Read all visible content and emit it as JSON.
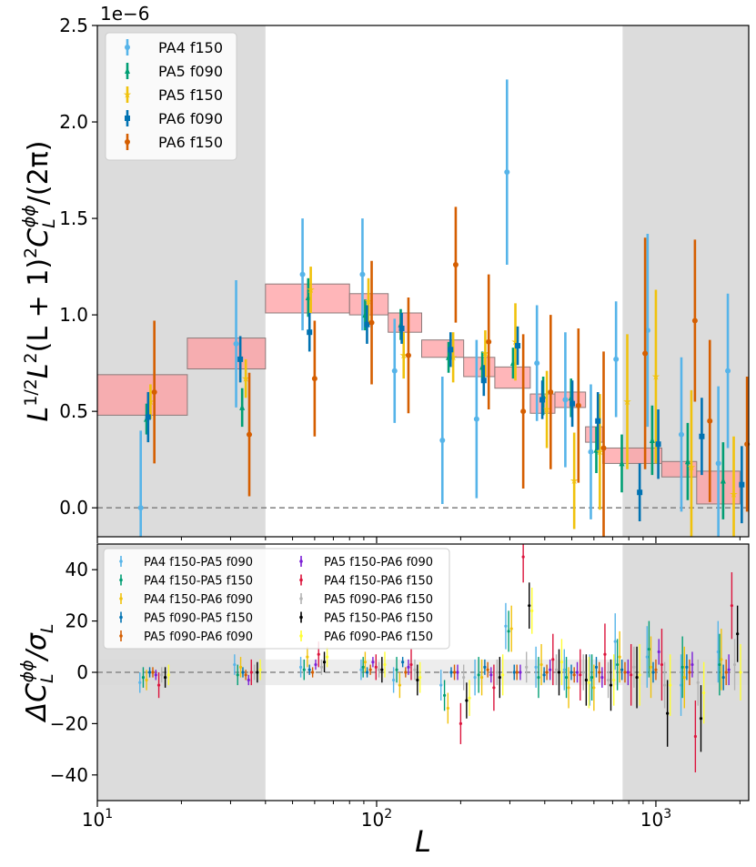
{
  "chart_data": [
    {
      "type": "scatter",
      "panel": "top",
      "scale_label": "1e−6",
      "ylabel_parts": [
        "L",
        "1/2",
        "L",
        "2",
        "(L + 1)",
        "2",
        "C",
        "L",
        "ϕϕ",
        "/(2π)"
      ],
      "xscale": "log",
      "xlim": [
        10,
        2150
      ],
      "ylim": [
        -0.15,
        2.5
      ],
      "y_ticks": [
        0.0,
        0.5,
        1.0,
        1.5,
        2.0,
        2.5
      ],
      "y_tick_labels": [
        "0.0",
        "0.5",
        "1.0",
        "1.5",
        "2.0",
        "2.5"
      ],
      "excluded_ranges": [
        [
          10,
          40
        ],
        [
          760,
          2150
        ]
      ],
      "reference_line": 0.0,
      "legend_position": "top-left",
      "bands": [
        {
          "L": [
            10,
            21
          ],
          "y": [
            0.48,
            0.69
          ]
        },
        {
          "L": [
            21,
            40
          ],
          "y": [
            0.72,
            0.88
          ]
        },
        {
          "L": [
            40,
            80
          ],
          "y": [
            1.01,
            1.16
          ]
        },
        {
          "L": [
            80,
            110
          ],
          "y": [
            1.0,
            1.11
          ]
        },
        {
          "L": [
            110,
            145
          ],
          "y": [
            0.91,
            1.01
          ]
        },
        {
          "L": [
            145,
            205
          ],
          "y": [
            0.78,
            0.87
          ]
        },
        {
          "L": [
            205,
            265
          ],
          "y": [
            0.68,
            0.78
          ]
        },
        {
          "L": [
            265,
            355
          ],
          "y": [
            0.62,
            0.73
          ]
        },
        {
          "L": [
            355,
            435
          ],
          "y": [
            0.49,
            0.59
          ]
        },
        {
          "L": [
            435,
            560
          ],
          "y": [
            0.52,
            0.6
          ]
        },
        {
          "L": [
            560,
            645
          ],
          "y": [
            0.34,
            0.42
          ]
        },
        {
          "L": [
            645,
            1050
          ],
          "y": [
            0.23,
            0.31
          ]
        },
        {
          "L": [
            1050,
            1400
          ],
          "y": [
            0.16,
            0.24
          ]
        },
        {
          "L": [
            1400,
            2000
          ],
          "y": [
            0.02,
            0.19
          ]
        }
      ],
      "series": [
        {
          "name": "PA4 f150",
          "color": "#56b4e9",
          "marker": "circle",
          "x": [
            14.3,
            31.4,
            54.3,
            89.0,
            116,
            172,
            228,
            293,
            375,
            474,
            585,
            720,
            934,
            1234,
            1674,
            1810
          ],
          "y": [
            0.0,
            0.85,
            1.21,
            1.21,
            0.71,
            0.35,
            0.46,
            1.74,
            0.75,
            0.56,
            0.29,
            0.77,
            0.92,
            0.38,
            0.23,
            0.71
          ],
          "err": [
            0.4,
            0.33,
            0.29,
            0.29,
            0.27,
            0.33,
            0.41,
            0.48,
            0.3,
            0.35,
            0.35,
            0.3,
            0.5,
            0.4,
            0.4,
            0.4
          ]
        },
        {
          "name": "PA5 f090",
          "color": "#009e73",
          "marker": "triangle",
          "x": [
            15.0,
            33.0,
            56.9,
            91.0,
            122,
            181,
            239,
            308,
            395,
            497,
            612,
            755,
            970,
            1300,
            1741
          ],
          "y": [
            0.46,
            0.52,
            1.09,
            1.0,
            0.95,
            0.78,
            0.73,
            0.75,
            0.58,
            0.57,
            0.3,
            0.23,
            0.35,
            0.24,
            0.14
          ],
          "err": [
            0.08,
            0.1,
            0.1,
            0.08,
            0.08,
            0.08,
            0.08,
            0.08,
            0.1,
            0.1,
            0.12,
            0.15,
            0.18,
            0.2,
            0.2
          ]
        },
        {
          "name": "PA5 f150",
          "color": "#f0c20c",
          "marker": "star",
          "x": [
            15.5,
            34.0,
            58.1,
            93.5,
            125,
            188,
            245,
            314,
            407,
            510,
            630,
            790,
            1000,
            1340,
            1900
          ],
          "y": [
            0.55,
            0.67,
            1.13,
            1.07,
            0.79,
            0.78,
            0.8,
            0.86,
            0.51,
            0.14,
            0.29,
            0.55,
            0.68,
            0.21,
            0.07
          ],
          "err": [
            0.09,
            0.1,
            0.12,
            0.12,
            0.12,
            0.13,
            0.12,
            0.2,
            0.2,
            0.25,
            0.3,
            0.35,
            0.45,
            0.4,
            0.3
          ]
        },
        {
          "name": "PA6 f090",
          "color": "#0072b2",
          "marker": "square",
          "x": [
            15.2,
            32.5,
            57.5,
            92.4,
            123,
            184,
            242,
            320,
            392,
            502,
            620,
            875,
            1020,
            1460,
            2030
          ],
          "y": [
            0.47,
            0.77,
            0.91,
            0.95,
            0.93,
            0.82,
            0.66,
            0.84,
            0.56,
            0.54,
            0.45,
            0.08,
            0.33,
            0.37,
            0.12
          ],
          "err": [
            0.13,
            0.12,
            0.1,
            0.1,
            0.08,
            0.09,
            0.08,
            0.1,
            0.1,
            0.12,
            0.15,
            0.15,
            0.18,
            0.2,
            0.2
          ]
        },
        {
          "name": "PA6 f150",
          "color": "#d55e00",
          "marker": "circle",
          "x": [
            16.0,
            35.0,
            60.0,
            96.0,
            130,
            192,
            252,
            335,
            420,
            528,
            650,
            915,
            1380,
            1560,
            2120
          ],
          "y": [
            0.6,
            0.38,
            0.67,
            0.96,
            0.79,
            1.26,
            0.86,
            0.5,
            0.6,
            0.53,
            0.31,
            0.8,
            0.97,
            0.45,
            0.33
          ],
          "err": [
            0.37,
            0.32,
            0.3,
            0.32,
            0.3,
            0.3,
            0.35,
            0.4,
            0.4,
            0.4,
            0.5,
            0.6,
            0.42,
            0.42,
            0.35
          ]
        }
      ]
    },
    {
      "type": "scatter",
      "panel": "bottom",
      "ylabel_parts": [
        "ΔC",
        "L",
        "ϕϕ",
        "/σ",
        "L"
      ],
      "xlabel": "L",
      "xscale": "log",
      "xlim": [
        10,
        2150
      ],
      "ylim": [
        -50,
        50
      ],
      "y_ticks": [
        -40,
        -20,
        0,
        20,
        40
      ],
      "y_tick_labels": [
        "−40",
        "−20",
        "0",
        "20",
        "40"
      ],
      "x_ticks": [
        10,
        100,
        1000
      ],
      "x_tick_labels": [
        [
          "10",
          "1"
        ],
        [
          "10",
          "2"
        ],
        [
          "10",
          "3"
        ]
      ],
      "shaded_band": [
        -5,
        5
      ],
      "excluded_ranges": [
        [
          10,
          40
        ],
        [
          760,
          2150
        ]
      ],
      "reference_line": 0,
      "legend_position": "top-left",
      "series": [
        {
          "name": "PA4 f150-PA5 f090",
          "color": "#56b4e9",
          "x": [
            14.2,
            31.0,
            53.5,
            88,
            115,
            170,
            225,
            290,
            372,
            470,
            580,
            715,
            930,
            1230,
            1670
          ],
          "y": [
            -4,
            3,
            2,
            1,
            -3,
            -5,
            -2,
            18,
            2,
            1,
            -3,
            12,
            6,
            -5,
            8
          ],
          "err": [
            4,
            4,
            4,
            4,
            5,
            6,
            7,
            9,
            8,
            8,
            10,
            11,
            12,
            12,
            12
          ]
        },
        {
          "name": "PA4 f150-PA5 f150",
          "color": "#009e73",
          "x": [
            14.6,
            31.8,
            55.0,
            89.5,
            118,
            175,
            232,
            297,
            380,
            478,
            590,
            728,
            945,
            1245,
            1690
          ],
          "y": [
            -2,
            -1,
            1,
            2,
            1,
            -9,
            -1,
            16,
            -2,
            -2,
            -2,
            3,
            9,
            2,
            3
          ],
          "err": [
            4,
            4,
            4,
            4,
            5,
            6,
            7,
            8,
            8,
            8,
            9,
            10,
            11,
            12,
            12
          ]
        },
        {
          "name": "PA4 f150-PA6 f090",
          "color": "#f0c20c",
          "x": [
            15.0,
            32.6,
            56.5,
            91,
            121,
            180,
            238,
            304,
            389,
            487,
            600,
            742,
            960,
            1265,
            1715
          ],
          "y": [
            -3,
            2,
            6,
            4,
            -5,
            -14,
            -2,
            17,
            3,
            -6,
            -6,
            6,
            2,
            -2,
            5
          ],
          "err": [
            4,
            4,
            4,
            4,
            5,
            6,
            7,
            9,
            8,
            8,
            9,
            10,
            12,
            12,
            12
          ]
        },
        {
          "name": "PA5 f090-PA5 f150",
          "color": "#0072b2",
          "x": [
            15.4,
            33.2,
            57.5,
            92.5,
            124,
            185,
            244,
            311,
            398,
            498,
            612,
            756,
            978,
            1290,
            1745
          ],
          "y": [
            0,
            0,
            1,
            0,
            4,
            0,
            2,
            0,
            -1,
            0,
            2,
            1,
            0,
            2,
            -2
          ],
          "err": [
            2,
            2,
            2,
            2,
            2,
            2,
            3,
            3,
            3,
            3,
            4,
            4,
            4,
            5,
            5
          ]
        },
        {
          "name": "PA5 f090-PA6 f090",
          "color": "#d55e00",
          "x": [
            15.8,
            34.0,
            59.0,
            95,
            127,
            190,
            250,
            318,
            407,
            510,
            627,
            775,
            1000,
            1320,
            1785
          ],
          "y": [
            0,
            -1,
            0,
            1,
            0,
            0,
            1,
            0,
            0,
            -1,
            0,
            0,
            1,
            0,
            0
          ],
          "err": [
            2,
            2,
            2,
            2,
            2,
            3,
            3,
            3,
            3,
            3,
            4,
            4,
            4,
            5,
            5
          ]
        },
        {
          "name": "PA5 f150-PA6 f090",
          "color": "#7b1fd6",
          "x": [
            16.2,
            34.8,
            60.5,
            97,
            130,
            195,
            257,
            327,
            418,
            523,
            642,
            795,
            1025,
            1350,
            1825
          ],
          "y": [
            -1,
            -3,
            3,
            4,
            2,
            0,
            -1,
            0,
            1,
            0,
            -2,
            0,
            8,
            3,
            1
          ],
          "err": [
            2,
            2,
            2,
            2,
            3,
            3,
            3,
            3,
            4,
            4,
            4,
            5,
            5,
            5,
            6
          ]
        },
        {
          "name": "PA4 f150-PA6 f150",
          "color": "#dc143c",
          "x": [
            16.6,
            35.6,
            62.0,
            99.5,
            133,
            200,
            263,
            335,
            428,
            536,
            657,
            815,
            1050,
            1385,
            1870
          ],
          "y": [
            -5,
            0,
            7,
            2,
            3,
            -20,
            -6,
            45,
            5,
            -1,
            7,
            -1,
            3,
            -25,
            26
          ],
          "err": [
            5,
            5,
            5,
            5,
            6,
            8,
            9,
            10,
            10,
            10,
            12,
            12,
            14,
            14,
            13
          ]
        },
        {
          "name": "PA5 f090-PA6 f150",
          "color": "#b4b4b4",
          "x": [
            17.0,
            36.5,
            63.5,
            102,
            137,
            205,
            270,
            344,
            440,
            550,
            675,
            835,
            1075,
            1415,
            1915
          ],
          "y": [
            -1,
            0,
            2,
            1,
            1,
            -2,
            0,
            2,
            1,
            0,
            -3,
            2,
            -5,
            -4,
            3
          ],
          "err": [
            3,
            3,
            3,
            3,
            4,
            5,
            5,
            6,
            6,
            7,
            7,
            8,
            9,
            9,
            10
          ]
        },
        {
          "name": "PA5 f150-PA6 f150",
          "color": "#000000",
          "x": [
            17.5,
            37.4,
            65.0,
            104.5,
            140,
            210,
            276,
            352,
            450,
            563,
            690,
            855,
            1100,
            1450,
            1960
          ],
          "y": [
            -2,
            0,
            4,
            1,
            -3,
            -11,
            -2,
            26,
            0,
            -3,
            -5,
            -2,
            -16,
            -18,
            15
          ],
          "err": [
            4,
            4,
            4,
            5,
            6,
            7,
            8,
            9,
            9,
            10,
            10,
            12,
            13,
            13,
            11
          ]
        },
        {
          "name": "PA6 f090-PA6 f150",
          "color": "#ffff33",
          "x": [
            18.0,
            38.3,
            66.5,
            107,
            143,
            215,
            283,
            360,
            460,
            576,
            707,
            875,
            1125,
            1485,
            2010
          ],
          "y": [
            -1,
            1,
            6,
            3,
            -2,
            -10,
            -1,
            24,
            4,
            -4,
            -3,
            -1,
            -5,
            -8,
            0
          ],
          "err": [
            4,
            4,
            4,
            5,
            6,
            7,
            8,
            9,
            9,
            10,
            10,
            12,
            12,
            12,
            11
          ]
        }
      ]
    }
  ]
}
